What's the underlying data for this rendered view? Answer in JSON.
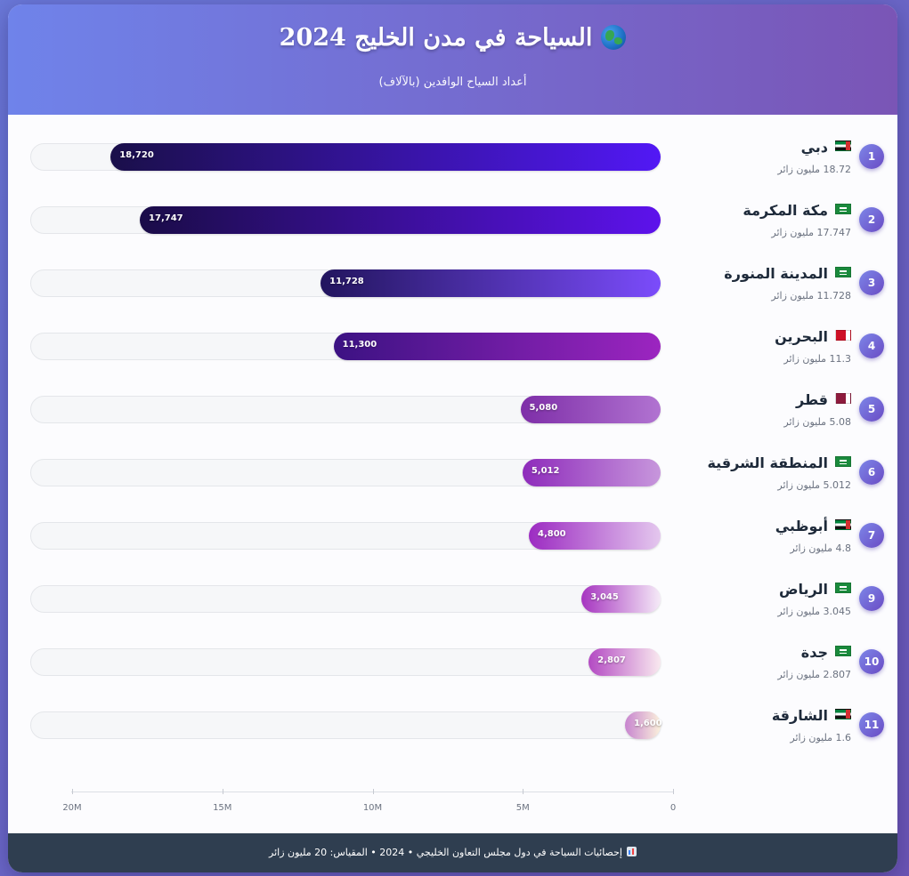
{
  "header": {
    "title": "السياحة في مدن الخليج 2024",
    "subtitle": "أعداد السياح الوافدين (بالآلاف)",
    "icon": "globe-icon"
  },
  "chart_data": {
    "type": "bar",
    "orientation": "horizontal",
    "title": "السياحة في مدن الخليج 2024",
    "subtitle": "أعداد السياح الوافدين (بالآلاف)",
    "xlim": [
      0,
      20000000
    ],
    "x_ticks": [
      "20M",
      "15M",
      "10M",
      "5M",
      "0"
    ],
    "x_tick_values": [
      20000000,
      15000000,
      10000000,
      5000000,
      0
    ],
    "grid": false,
    "legend": "none",
    "rows": [
      {
        "rank": "1",
        "city": "دبي",
        "flag": "ae",
        "value": 18720,
        "value_label": "18,720",
        "visitors": "18.72 مليون زائر",
        "colors": [
          "#1a0f4a",
          "#5218f5"
        ]
      },
      {
        "rank": "2",
        "city": "مكة المكرمة",
        "flag": "sa",
        "value": 17747,
        "value_label": "17,747",
        "visitors": "17.747 مليون زائر",
        "colors": [
          "#1a0c48",
          "#5d12ec"
        ]
      },
      {
        "rank": "3",
        "city": "المدينة المنورة",
        "flag": "sa",
        "value": 11728,
        "value_label": "11,728",
        "visitors": "11.728 مليون زائر",
        "colors": [
          "#22155e",
          "#7b4cfb"
        ]
      },
      {
        "rank": "4",
        "city": "البحرين",
        "flag": "bh",
        "value": 11300,
        "value_label": "11,300",
        "visitors": "11.3 مليون زائر",
        "colors": [
          "#3c1283",
          "#9c25c0"
        ]
      },
      {
        "rank": "5",
        "city": "قطر",
        "flag": "qa",
        "value": 5080,
        "value_label": "5,080",
        "visitors": "5.08 مليون زائر",
        "colors": [
          "#7e2ea8",
          "#b173d1"
        ]
      },
      {
        "rank": "6",
        "city": "المنطقة الشرقية",
        "flag": "sa",
        "value": 5012,
        "value_label": "5,012",
        "visitors": "5.012 مليون زائر",
        "colors": [
          "#8e2bbb",
          "#c796dc"
        ]
      },
      {
        "rank": "7",
        "city": "أبوظبي",
        "flag": "ae",
        "value": 4800,
        "value_label": "4,800",
        "visitors": "4.8 مليون زائر",
        "colors": [
          "#9c2bc2",
          "#e4c7ee"
        ]
      },
      {
        "rank": "9",
        "city": "الرياض",
        "flag": "sa",
        "value": 3045,
        "value_label": "3,045",
        "visitors": "3.045 مليون زائر",
        "colors": [
          "#a635c0",
          "#f5eaf7"
        ]
      },
      {
        "rank": "10",
        "city": "جدة",
        "flag": "sa",
        "value": 2807,
        "value_label": "2,807",
        "visitors": "2.807 مليون زائر",
        "colors": [
          "#b34ac3",
          "#f9e9ef"
        ]
      },
      {
        "rank": "11",
        "city": "الشارقة",
        "flag": "ae",
        "value": 1600,
        "value_label": "1,600",
        "visitors": "1.6 مليون زائر",
        "colors": [
          "#c784cf",
          "#fbf1dc"
        ]
      }
    ]
  },
  "footer": {
    "icon": "bar-chart-icon",
    "text": "إحصائيات السياحة في دول مجلس التعاون الخليجي • 2024 • المقياس: 20 مليون زائر"
  }
}
